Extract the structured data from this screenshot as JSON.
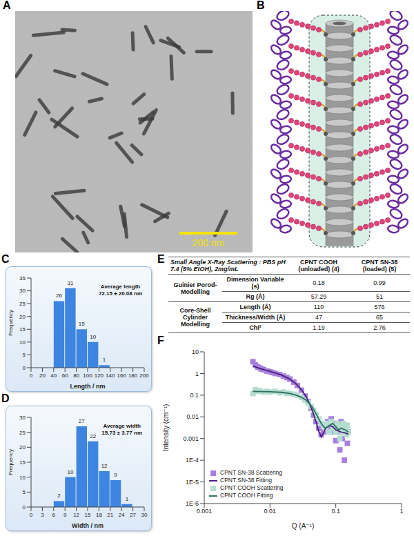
{
  "image": {
    "panel": "A",
    "scale_bar": "200 nm"
  },
  "diagram": {
    "panel": "B"
  },
  "chart_data": [
    {
      "panel": "C",
      "type": "histogram",
      "bins": [
        0,
        20,
        40,
        60,
        80,
        100,
        120,
        140,
        160,
        180,
        200
      ],
      "values": [
        0,
        0,
        26,
        31,
        15,
        10,
        1,
        0,
        0,
        0
      ],
      "color": "#3d85e0",
      "xlabel": "Length / nm",
      "ylabel": "Frequency",
      "xlim": [
        0,
        200
      ],
      "xticks": [
        0,
        20,
        40,
        60,
        80,
        100,
        120,
        140,
        160,
        180,
        200
      ],
      "ylim": [
        0,
        35
      ],
      "yticks": [
        0,
        5,
        10,
        15,
        20,
        25,
        30,
        35
      ],
      "data_labels": true,
      "annotations": [
        "Average length",
        "72.15 ± 20.08 nm"
      ]
    },
    {
      "panel": "D",
      "type": "histogram",
      "bins": [
        0,
        3,
        6,
        9,
        12,
        15,
        18,
        21,
        24,
        27,
        30
      ],
      "values": [
        0,
        0,
        2,
        10,
        27,
        22,
        12,
        9,
        1,
        0
      ],
      "color": "#3d85e0",
      "xlabel": "Width / nm",
      "ylabel": "Frequency",
      "xlim": [
        0,
        30
      ],
      "xticks": [
        0,
        3,
        6,
        9,
        12,
        15,
        18,
        21,
        24,
        27,
        30
      ],
      "ylim": [
        0,
        30
      ],
      "yticks": [
        0,
        5,
        10,
        15,
        20,
        25,
        30
      ],
      "data_labels": true,
      "annotations": [
        "Average width",
        "15.73 ± 3.77 nm"
      ]
    },
    {
      "panel": "F",
      "type": "scatter",
      "log": true,
      "xlabel": "Q (A⁻¹)",
      "ylabel": "Intensity (cm⁻¹)",
      "xlim": [
        0.001,
        1
      ],
      "xticks": [
        0.001,
        0.01,
        0.1,
        1
      ],
      "ylim": [
        1e-06,
        10
      ],
      "yticks": [
        {
          "value": 1e-06,
          "label": "1E-6"
        },
        {
          "value": 1e-05,
          "label": "1E-5"
        },
        {
          "value": 0.0001,
          "label": "1E-4"
        },
        0.001,
        0.01,
        0.1,
        1,
        10
      ],
      "legend": "lower left",
      "series": [
        {
          "name": "CPNT SN-38 Scattering",
          "type": "scatter",
          "marker": "square",
          "color": "#a77fe0",
          "x": [
            0.0055,
            0.006,
            0.0065,
            0.007,
            0.0075,
            0.008,
            0.009,
            0.01,
            0.011,
            0.012,
            0.014,
            0.016,
            0.018,
            0.02,
            0.023,
            0.026,
            0.03,
            0.034,
            0.038,
            0.042,
            0.046,
            0.05,
            0.055,
            0.06,
            0.065,
            0.07,
            0.075,
            0.08,
            0.085,
            0.09,
            0.095,
            0.1,
            0.105,
            0.11,
            0.115,
            0.12,
            0.125,
            0.13,
            0.135,
            0.14,
            0.145,
            0.15,
            0.155
          ],
          "values": [
            3.5,
            2.5,
            2.0,
            1.8,
            1.6,
            1.5,
            1.3,
            1.2,
            1.1,
            1.0,
            0.9,
            0.75,
            0.65,
            0.55,
            0.4,
            0.28,
            0.17,
            0.09,
            0.05,
            0.025,
            0.012,
            0.006,
            0.003,
            0.0015,
            0.002,
            0.004,
            0.006,
            0.003,
            0.008,
            0.002,
            0.005,
            0.0008,
            0.004,
            0.002,
            0.0003,
            0.006,
            0.001,
            0.003,
            0.0001,
            0.002,
            0.004,
            0.0006,
            0.002
          ]
        },
        {
          "name": "CPNT SN-38 Fitting",
          "type": "line",
          "line_style": "solid",
          "color": "#4a1f7a",
          "x": [
            0.0055,
            0.007,
            0.01,
            0.015,
            0.02,
            0.025,
            0.03,
            0.035,
            0.04,
            0.045,
            0.05,
            0.055,
            0.06,
            0.065,
            0.07,
            0.08,
            0.09,
            0.1,
            0.12,
            0.14,
            0.155
          ],
          "values": [
            2.2,
            1.7,
            1.25,
            0.85,
            0.55,
            0.33,
            0.18,
            0.09,
            0.04,
            0.016,
            0.006,
            0.0022,
            0.0012,
            0.0018,
            0.003,
            0.004,
            0.0035,
            0.0025,
            0.002,
            0.0018,
            0.0016
          ]
        },
        {
          "name": "CPNT COOH Scattering",
          "type": "scatter",
          "marker": "square",
          "color": "#b5ddd0",
          "x": [
            0.0055,
            0.006,
            0.0065,
            0.007,
            0.008,
            0.009,
            0.01,
            0.012,
            0.014,
            0.016,
            0.018,
            0.02,
            0.023,
            0.026,
            0.03,
            0.034,
            0.038,
            0.042,
            0.046,
            0.05,
            0.055,
            0.06,
            0.065,
            0.07,
            0.075,
            0.08,
            0.085,
            0.09,
            0.095,
            0.1,
            0.105,
            0.11,
            0.115,
            0.12,
            0.125,
            0.13,
            0.135,
            0.14,
            0.145,
            0.15,
            0.155
          ],
          "values": [
            0.12,
            0.18,
            0.15,
            0.16,
            0.14,
            0.15,
            0.14,
            0.15,
            0.13,
            0.14,
            0.12,
            0.12,
            0.11,
            0.1,
            0.08,
            0.06,
            0.045,
            0.03,
            0.02,
            0.013,
            0.008,
            0.005,
            0.004,
            0.003,
            0.005,
            0.002,
            0.006,
            0.003,
            0.004,
            0.002,
            0.005,
            0.003,
            0.001,
            0.004,
            0.002,
            0.005,
            0.002,
            0.003,
            0.0015,
            0.004,
            0.002
          ]
        },
        {
          "name": "CPNT COOH Fitting",
          "type": "line",
          "line_style": "solid",
          "color": "#2f6f63",
          "x": [
            0.0055,
            0.01,
            0.015,
            0.02,
            0.025,
            0.03,
            0.035,
            0.04,
            0.045,
            0.05,
            0.055,
            0.06,
            0.065,
            0.07,
            0.08,
            0.09,
            0.1,
            0.11,
            0.12,
            0.14,
            0.155
          ],
          "values": [
            0.15,
            0.145,
            0.135,
            0.12,
            0.1,
            0.08,
            0.06,
            0.04,
            0.025,
            0.014,
            0.008,
            0.005,
            0.0035,
            0.003,
            0.004,
            0.005,
            0.0035,
            0.0025,
            0.003,
            0.0025,
            0.002
          ]
        }
      ]
    }
  ],
  "table": {
    "panel": "E",
    "title": "Small Angle X-Ray Scattering : PBS pH 7.4 (5% EtOH), 2mg/mL",
    "columns": [
      "CPNT COOH (unloaded) (4)",
      "CPNT SN-38 (loaded) (5)"
    ],
    "groups": [
      {
        "name": "Guinier Porod-Modelling",
        "rows": [
          {
            "label": "Dimension Variable (s)",
            "values": [
              "0.18",
              "0.99"
            ]
          },
          {
            "label": "Rg (Å)",
            "values": [
              "57.29",
              "51"
            ]
          }
        ]
      },
      {
        "name": "Core-Shell Cylinder Modelling",
        "rows": [
          {
            "label": "Length (Å)",
            "values": [
              "110",
              "576"
            ]
          },
          {
            "label": "Thickness/Width (Å)",
            "values": [
              "47",
              "65"
            ]
          },
          {
            "label": "Chi²",
            "values": [
              "1.19",
              "2.76"
            ]
          }
        ]
      }
    ]
  }
}
